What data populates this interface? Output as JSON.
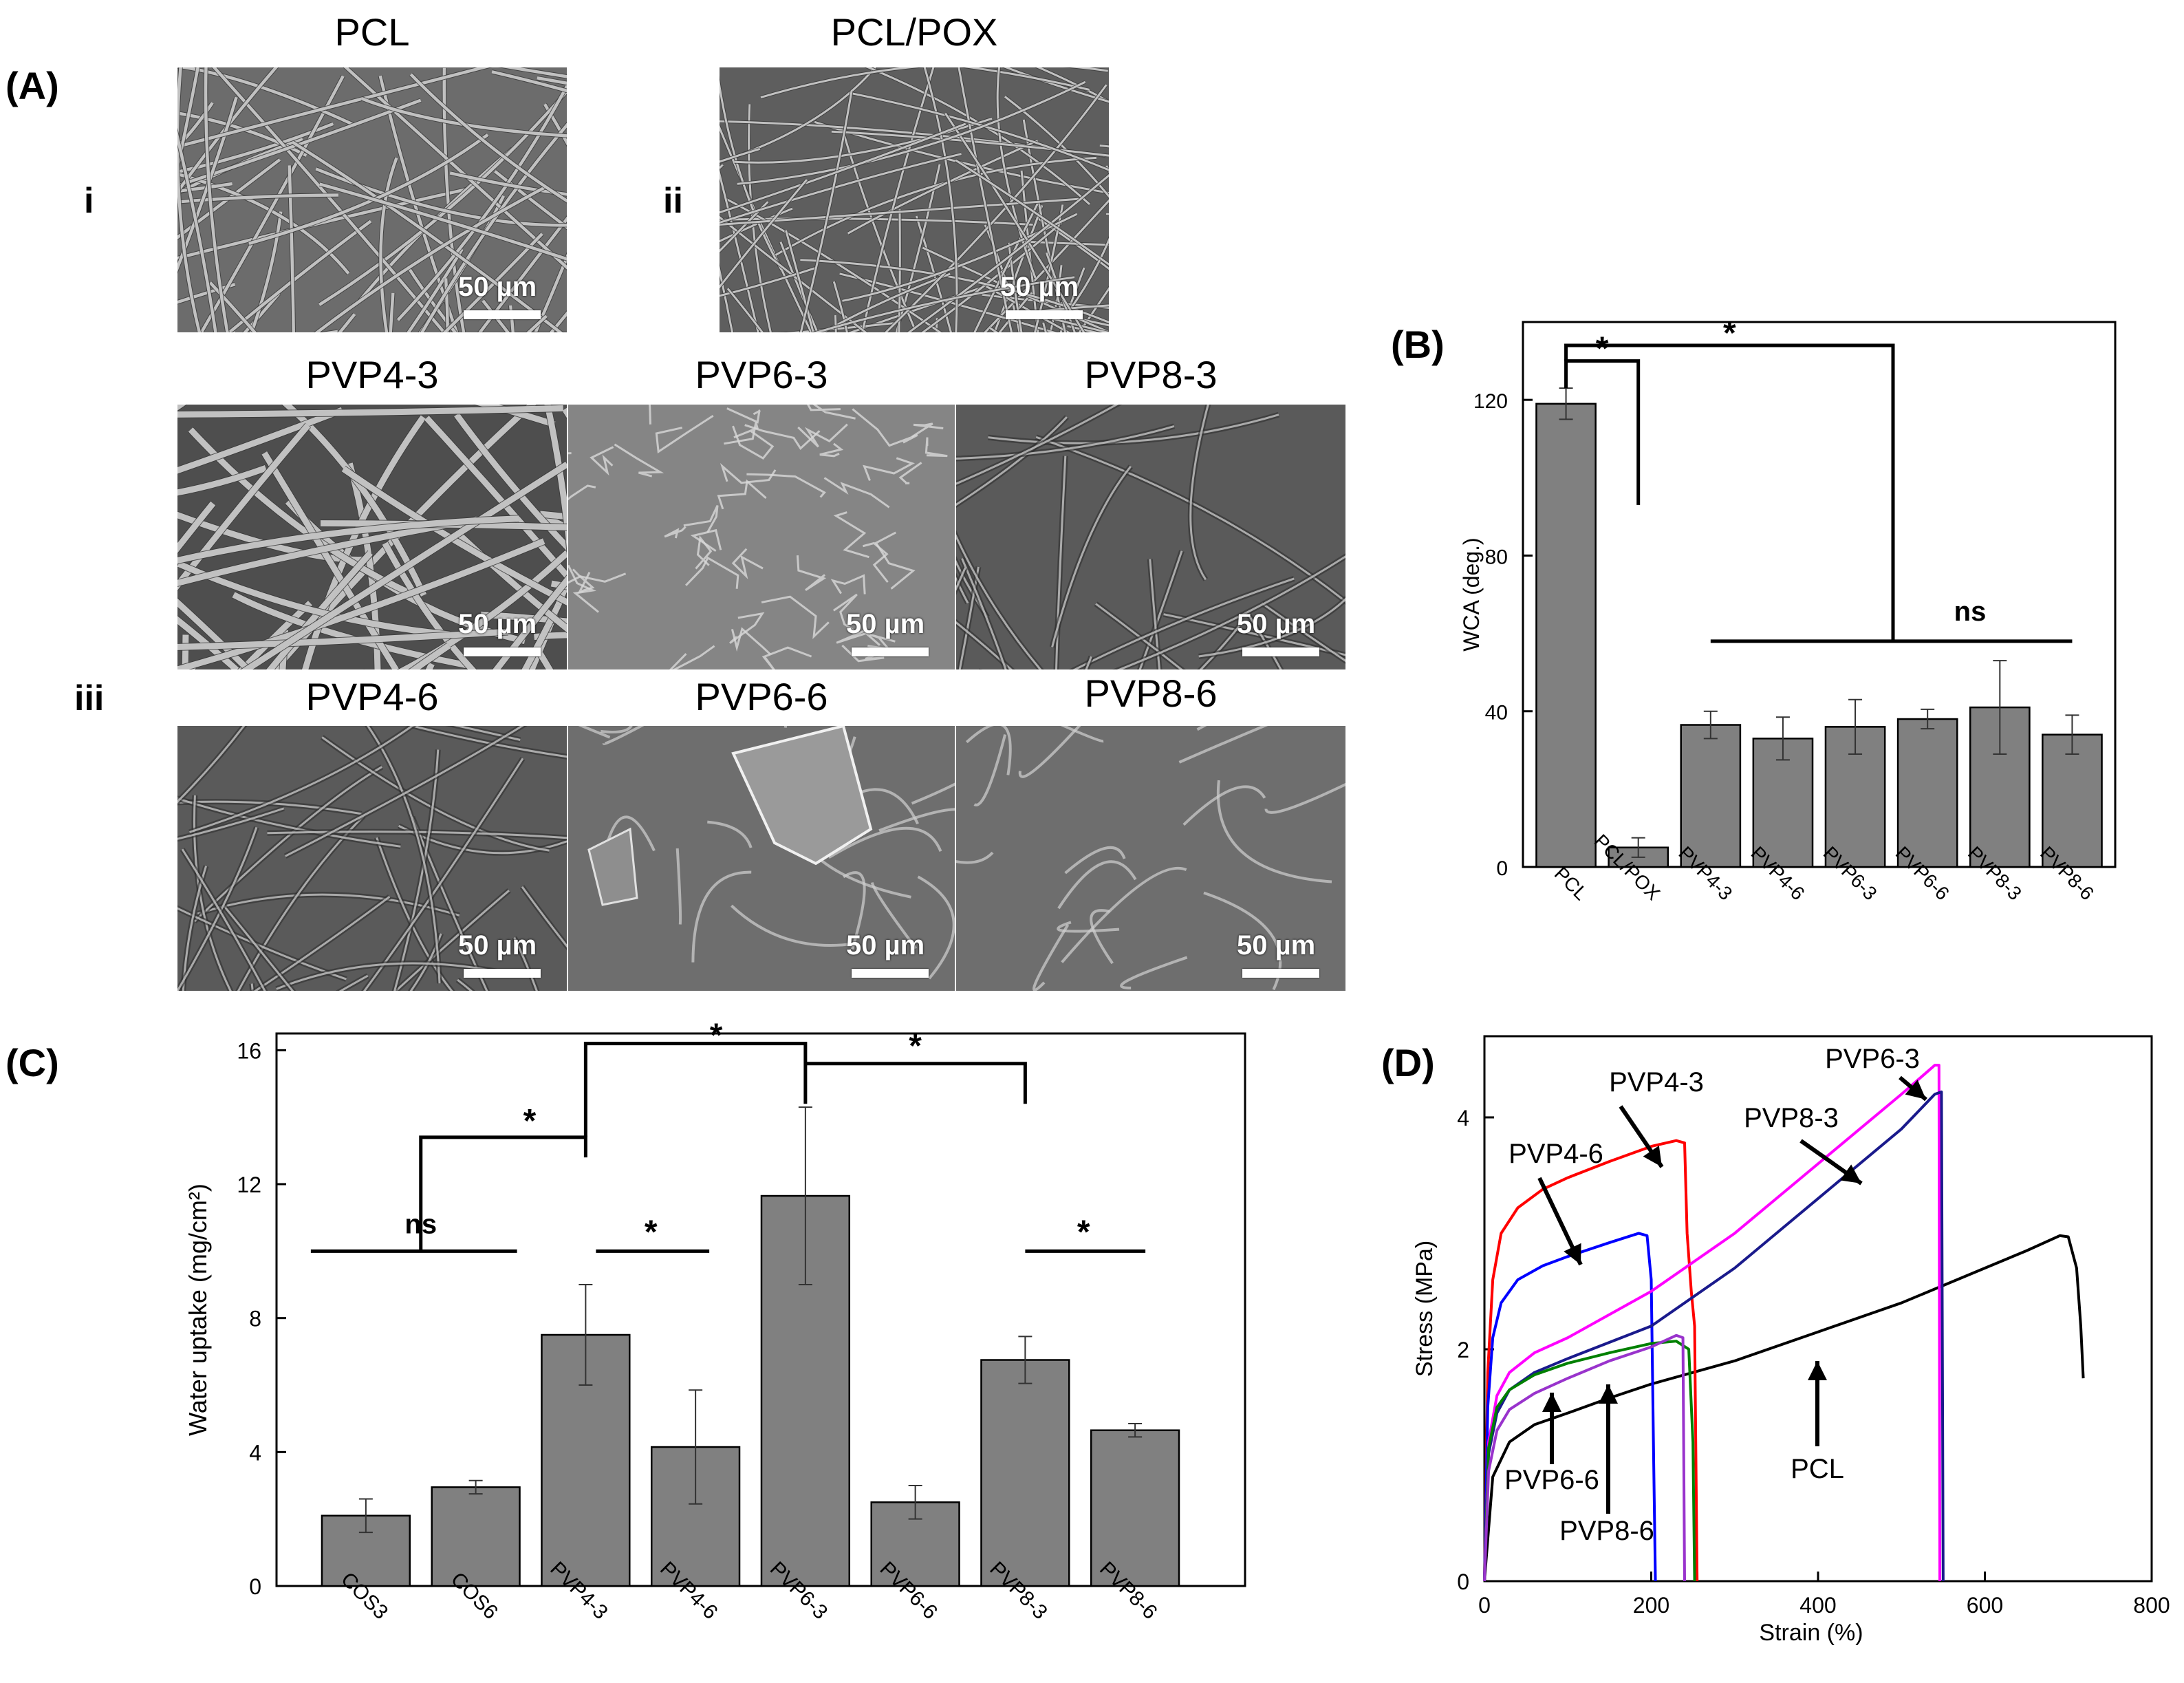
{
  "panel_A": {
    "letter": "(A)",
    "row_labels": [
      "i",
      "ii",
      "iii"
    ],
    "scale_label": "50 µm",
    "images": [
      {
        "title": "PCL",
        "texture": "thin-fibers"
      },
      {
        "title": "PCL/POX",
        "texture": "dense-thin-fibers"
      },
      {
        "title": "PVP4-3",
        "texture": "thick-fibers"
      },
      {
        "title": "PVP6-3",
        "texture": "cracked-film"
      },
      {
        "title": "PVP8-3",
        "texture": "fused-fibers"
      },
      {
        "title": "PVP4-6",
        "texture": "fused-fibers"
      },
      {
        "title": "PVP6-6",
        "texture": "smooth-film"
      },
      {
        "title": "PVP8-6",
        "texture": "smooth-film"
      }
    ]
  },
  "chart_data": [
    {
      "panel": "(B)",
      "type": "bar",
      "ylabel": "WCA (deg.)",
      "ylim": [
        0,
        140
      ],
      "yticks": [
        0,
        40,
        80,
        120
      ],
      "categories": [
        "PCL",
        "PCL/POX",
        "PVP4-3",
        "PVP4-6",
        "PVP6-3",
        "PVP6-6",
        "PVP8-3",
        "PVP8-6"
      ],
      "values": [
        119,
        5,
        36.5,
        33,
        36,
        38,
        41,
        34
      ],
      "errors": [
        4,
        2.5,
        3.5,
        5.5,
        7,
        2.5,
        12,
        5
      ],
      "bar_color": "#808080",
      "significance": [
        {
          "label": "*",
          "from": "PCL",
          "to": "PCL/POX"
        },
        {
          "label": "*",
          "from": "PCL",
          "to": "PVP4-3…PVP8-6"
        },
        {
          "label": "ns",
          "from": "PVP4-3",
          "to": "PVP8-6"
        }
      ]
    },
    {
      "panel": "(C)",
      "type": "bar",
      "ylabel": "Water uptake (mg/cm²)",
      "ylim": [
        0,
        16.5
      ],
      "yticks": [
        0,
        4,
        8,
        12,
        16
      ],
      "categories": [
        "COS3",
        "COS6",
        "PVP4-3",
        "PVP4-6",
        "PVP6-3",
        "PVP6-6",
        "PVP8-3",
        "PVP8-6"
      ],
      "values": [
        2.1,
        2.95,
        7.5,
        4.15,
        11.65,
        2.5,
        6.75,
        4.65
      ],
      "errors": [
        0.5,
        0.2,
        1.5,
        1.7,
        2.65,
        0.5,
        0.7,
        0.2
      ],
      "bar_color": "#808080",
      "significance": [
        {
          "label": "ns",
          "from": "COS3",
          "to": "COS6"
        },
        {
          "label": "*",
          "from": "COS3/COS6",
          "to": "PVP4-3"
        },
        {
          "label": "*",
          "from": "PVP4-3",
          "to": "PVP4-6"
        },
        {
          "label": "*",
          "from": "PVP4-3",
          "to": "PVP6-3"
        },
        {
          "label": "*",
          "from": "PVP6-3",
          "to": "PVP8-3"
        },
        {
          "label": "*",
          "from": "PVP8-3",
          "to": "PVP8-6"
        }
      ]
    },
    {
      "panel": "(D)",
      "type": "line",
      "xlabel": "Strain (%)",
      "ylabel": "Stress (MPa)",
      "xlim": [
        0,
        800
      ],
      "ylim": [
        0,
        4.7
      ],
      "xticks": [
        0,
        200,
        400,
        600,
        800
      ],
      "yticks": [
        0,
        2,
        4
      ],
      "series": [
        {
          "name": "PCL",
          "color": "#000000",
          "x": [
            0,
            10,
            30,
            60,
            100,
            150,
            200,
            300,
            400,
            500,
            600,
            650,
            690,
            700,
            710,
            715,
            718
          ],
          "y": [
            0,
            0.9,
            1.2,
            1.35,
            1.45,
            1.58,
            1.7,
            1.9,
            2.15,
            2.4,
            2.7,
            2.85,
            2.98,
            2.97,
            2.7,
            2.2,
            1.75
          ]
        },
        {
          "name": "PVP4-3",
          "color": "#ff0000",
          "x": [
            0,
            4,
            10,
            20,
            40,
            70,
            100,
            150,
            200,
            230,
            240,
            243,
            248,
            252,
            255
          ],
          "y": [
            0,
            1.8,
            2.6,
            3.0,
            3.22,
            3.38,
            3.48,
            3.62,
            3.75,
            3.8,
            3.78,
            3.0,
            2.5,
            2.2,
            0
          ]
        },
        {
          "name": "PVP4-6",
          "color": "#0000ff",
          "x": [
            0,
            4,
            10,
            20,
            40,
            70,
            100,
            150,
            185,
            195,
            200,
            203,
            205
          ],
          "y": [
            0,
            1.5,
            2.1,
            2.4,
            2.6,
            2.72,
            2.8,
            2.92,
            3.0,
            2.98,
            2.6,
            1.0,
            0
          ]
        },
        {
          "name": "PVP6-3",
          "color": "#ff00ff",
          "x": [
            0,
            5,
            15,
            30,
            60,
            100,
            200,
            300,
            400,
            500,
            540,
            545,
            546
          ],
          "y": [
            0,
            1.2,
            1.6,
            1.8,
            1.97,
            2.1,
            2.5,
            3.0,
            3.6,
            4.2,
            4.45,
            4.45,
            0
          ]
        },
        {
          "name": "PVP8-3",
          "color": "#1a1a8c",
          "x": [
            0,
            5,
            15,
            30,
            60,
            100,
            200,
            300,
            400,
            500,
            540,
            548,
            550
          ],
          "y": [
            0,
            1.1,
            1.45,
            1.65,
            1.8,
            1.92,
            2.2,
            2.7,
            3.3,
            3.9,
            4.2,
            4.22,
            0
          ]
        },
        {
          "name": "PVP6-6",
          "color": "#008000",
          "x": [
            0,
            5,
            15,
            30,
            60,
            100,
            150,
            200,
            230,
            245,
            250,
            252
          ],
          "y": [
            0,
            1.15,
            1.5,
            1.65,
            1.78,
            1.88,
            1.97,
            2.05,
            2.07,
            2.0,
            1.2,
            0
          ]
        },
        {
          "name": "PVP8-6",
          "color": "#9933cc",
          "x": [
            0,
            5,
            15,
            30,
            60,
            100,
            150,
            200,
            230,
            238,
            240
          ],
          "y": [
            0,
            0.95,
            1.3,
            1.48,
            1.62,
            1.75,
            1.9,
            2.02,
            2.12,
            2.1,
            0
          ]
        }
      ],
      "annotations": [
        "PVP4-3",
        "PVP4-6",
        "PVP6-3",
        "PVP8-3",
        "PVP6-6",
        "PVP8-6",
        "PCL"
      ]
    }
  ],
  "text": {
    "letter_B": "(B)",
    "letter_C": "(C)",
    "letter_D": "(D)",
    "ns": "ns",
    "star": "*"
  }
}
